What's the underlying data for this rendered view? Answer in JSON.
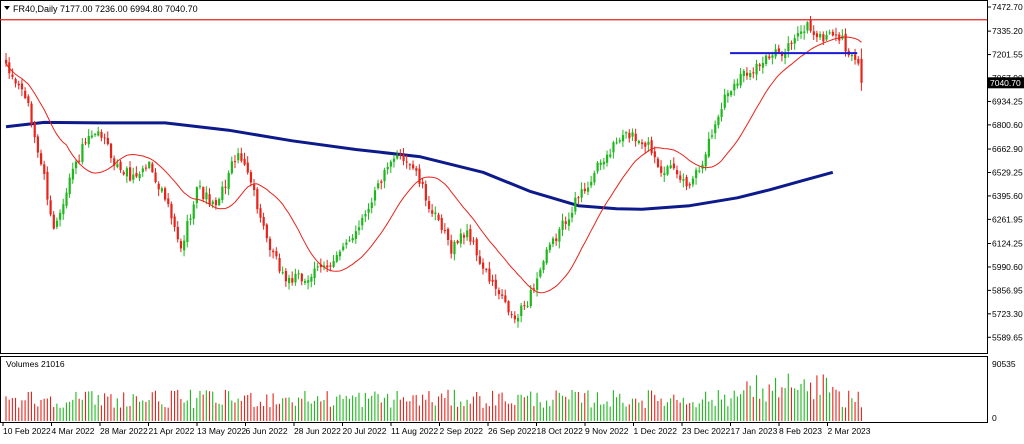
{
  "chart_data": {
    "type": "candlestick",
    "symbol_header": "FR40,Daily  7177.00 7236.00 6994.80 7040.70",
    "symbol": "FR40",
    "timeframe": "Daily",
    "last_ohlc": {
      "open": 7177.0,
      "high": 7236.0,
      "low": 6994.8,
      "close": 7040.7
    },
    "current_price": 7040.7,
    "current_price_label": "7040.70",
    "price_axis": {
      "min": 5500,
      "max": 7472.7,
      "ticks": [
        7472.7,
        7335.2,
        7201.55,
        7067.9,
        6934.25,
        6800.6,
        6662.9,
        6529.25,
        6395.6,
        6261.95,
        6124.25,
        5990.6,
        5856.95,
        5723.3,
        5589.65
      ],
      "tick_labels": [
        "7472.70",
        "7335.20",
        "7201.55",
        "7067.90",
        "6934.25",
        "6800.60",
        "6662.90",
        "6529.25",
        "6395.60",
        "6261.95",
        "6124.25",
        "5990.60",
        "5856.95",
        "5723.30",
        "5589.65"
      ]
    },
    "volume_panel": {
      "label": "Volumes 21016",
      "max_label": "90535",
      "zero_label": "0",
      "max": 90535
    },
    "x_axis": {
      "labels": [
        "10 Feb 2022",
        "4 Mar 2022",
        "28 Mar 2022",
        "21 Apr 2022",
        "13 May 2022",
        "6 Jun 2022",
        "28 Jun 2022",
        "20 Jul 2022",
        "11 Aug 2022",
        "2 Sep 2022",
        "26 Sep 2022",
        "18 Oct 2022",
        "9 Nov 2022",
        "1 Dec 2022",
        "23 Dec 2022",
        "17 Jan 2023",
        "8 Feb 2023",
        "2 Mar 2023"
      ]
    },
    "num_bars": 270,
    "anchors": [
      [
        0,
        7120
      ],
      [
        6,
        6970
      ],
      [
        12,
        6500
      ],
      [
        15,
        6200
      ],
      [
        20,
        6500
      ],
      [
        25,
        6700
      ],
      [
        30,
        6740
      ],
      [
        35,
        6560
      ],
      [
        40,
        6500
      ],
      [
        45,
        6580
      ],
      [
        50,
        6380
      ],
      [
        55,
        6080
      ],
      [
        60,
        6450
      ],
      [
        66,
        6320
      ],
      [
        72,
        6620
      ],
      [
        76,
        6560
      ],
      [
        82,
        6120
      ],
      [
        88,
        5920
      ],
      [
        94,
        5920
      ],
      [
        100,
        5990
      ],
      [
        106,
        6080
      ],
      [
        112,
        6270
      ],
      [
        118,
        6490
      ],
      [
        124,
        6640
      ],
      [
        128,
        6560
      ],
      [
        134,
        6300
      ],
      [
        140,
        6100
      ],
      [
        145,
        6200
      ],
      [
        150,
        5980
      ],
      [
        156,
        5800
      ],
      [
        160,
        5680
      ],
      [
        164,
        5800
      ],
      [
        170,
        6060
      ],
      [
        178,
        6330
      ],
      [
        186,
        6550
      ],
      [
        192,
        6700
      ],
      [
        196,
        6750
      ],
      [
        202,
        6690
      ],
      [
        206,
        6560
      ],
      [
        210,
        6530
      ],
      [
        214,
        6460
      ],
      [
        218,
        6560
      ],
      [
        222,
        6750
      ],
      [
        226,
        6960
      ],
      [
        230,
        7070
      ],
      [
        236,
        7140
      ],
      [
        242,
        7200
      ],
      [
        248,
        7280
      ],
      [
        252,
        7370
      ],
      [
        256,
        7290
      ],
      [
        260,
        7330
      ],
      [
        263,
        7280
      ],
      [
        266,
        7170
      ],
      [
        268,
        7180
      ],
      [
        269,
        7040.7
      ]
    ],
    "sma_fast": {
      "color": "#e8231b",
      "period": 20
    },
    "sma_slow": {
      "color": "#0d1a8c",
      "period": 200,
      "points": [
        [
          0,
          6790
        ],
        [
          12,
          6815
        ],
        [
          30,
          6812
        ],
        [
          50,
          6812
        ],
        [
          70,
          6770
        ],
        [
          90,
          6710
        ],
        [
          110,
          6660
        ],
        [
          130,
          6620
        ],
        [
          150,
          6530
        ],
        [
          165,
          6420
        ],
        [
          180,
          6340
        ],
        [
          192,
          6322
        ],
        [
          200,
          6320
        ],
        [
          215,
          6340
        ],
        [
          230,
          6385
        ],
        [
          240,
          6430
        ],
        [
          250,
          6480
        ],
        [
          260,
          6530
        ]
      ]
    },
    "resistance_line": {
      "price": 7400,
      "color": "#e8231b",
      "from_bar": 0,
      "to_bar": 300
    },
    "support_line": {
      "price": 7210,
      "color": "#1a1ad6",
      "from_bar": 228,
      "to_bar": 268
    },
    "bull_color": "#1cb81c",
    "bear_color": "#e8231b"
  }
}
